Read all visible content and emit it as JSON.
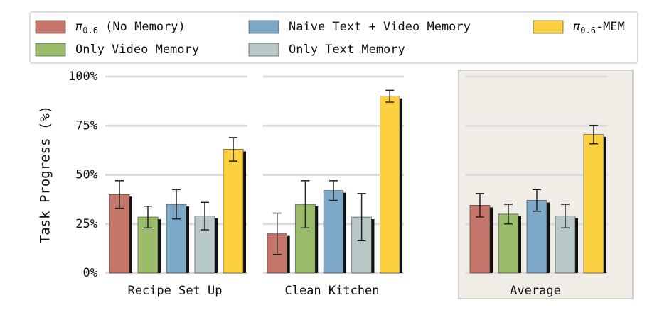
{
  "chart_data": {
    "type": "bar",
    "y_label": "Task Progress (%)",
    "categories": [
      "Recipe Set Up",
      "Clean Kitchen",
      "Average"
    ],
    "highlight_category": 2,
    "ylim": [
      0,
      100
    ],
    "yticks": [
      {
        "value": 0,
        "label": "0%"
      },
      {
        "value": 25,
        "label": "25%"
      },
      {
        "value": 50,
        "label": "50%"
      },
      {
        "value": 75,
        "label": "75%"
      },
      {
        "value": 100,
        "label": "100%"
      }
    ],
    "grid": true,
    "legend": "top",
    "series": [
      {
        "name": "π0.6 (No Memory)",
        "color": "#c4776a",
        "values": [
          40,
          20,
          34.5
        ],
        "errors": [
          7,
          10.5,
          6
        ]
      },
      {
        "name": "Only Video Memory",
        "color": "#99bb6a",
        "values": [
          28.5,
          35,
          30
        ],
        "errors": [
          5.5,
          12,
          5
        ]
      },
      {
        "name": "Naive Text + Video Memory",
        "color": "#7da8c8",
        "values": [
          35,
          42,
          37
        ],
        "errors": [
          7.5,
          5,
          5.5
        ]
      },
      {
        "name": "Only Text Memory",
        "color": "#b8c8c6",
        "values": [
          29,
          28.5,
          29
        ],
        "errors": [
          7,
          12,
          6
        ]
      },
      {
        "name": "π0.6-MEM",
        "color": "#fcd03e",
        "values": [
          63,
          90,
          70.5
        ],
        "errors": [
          6,
          3,
          4.7
        ]
      }
    ]
  }
}
